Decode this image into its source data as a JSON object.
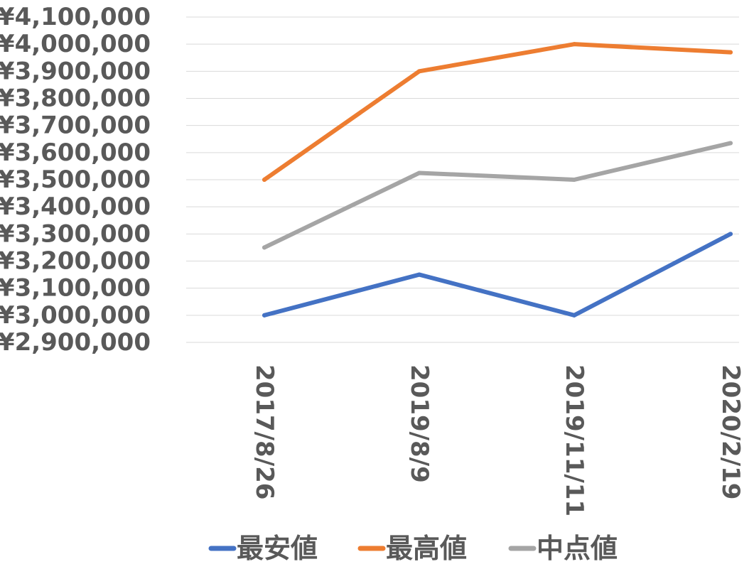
{
  "chart_data": {
    "type": "line",
    "title": "",
    "xlabel": "",
    "ylabel": "",
    "categories": [
      "2017/8/26",
      "2019/8/9",
      "2019/11/11",
      "2020/2/19"
    ],
    "series": [
      {
        "name": "最安値",
        "values": [
          3000000,
          3150000,
          3000000,
          3300000
        ],
        "color": "#4472C4"
      },
      {
        "name": "最高値",
        "values": [
          3500000,
          3900000,
          4000000,
          3970000
        ],
        "color": "#ED7D31"
      },
      {
        "name": "中点値",
        "values": [
          3250000,
          3525000,
          3500000,
          3635000
        ],
        "color": "#A5A5A5"
      }
    ],
    "ylim": [
      2900000,
      4100000
    ],
    "ytick_step": 100000,
    "ytick_labels": [
      "¥4,100,000",
      "¥4,000,000",
      "¥3,900,000",
      "¥3,800,000",
      "¥3,700,000",
      "¥3,600,000",
      "¥3,500,000",
      "¥3,400,000",
      "¥3,300,000",
      "¥3,200,000",
      "¥3,100,000",
      "¥3,000,000",
      "¥2,900,000"
    ],
    "grid": true,
    "legend_position": "bottom"
  }
}
